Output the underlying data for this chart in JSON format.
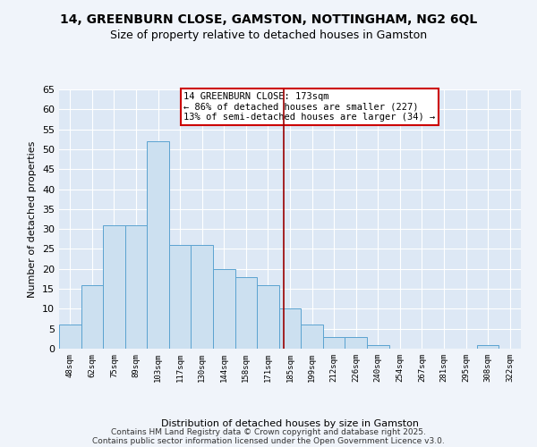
{
  "title": "14, GREENBURN CLOSE, GAMSTON, NOTTINGHAM, NG2 6QL",
  "subtitle": "Size of property relative to detached houses in Gamston",
  "xlabel": "Distribution of detached houses by size in Gamston",
  "ylabel": "Number of detached properties",
  "categories": [
    "48sqm",
    "62sqm",
    "75sqm",
    "89sqm",
    "103sqm",
    "117sqm",
    "130sqm",
    "144sqm",
    "158sqm",
    "171sqm",
    "185sqm",
    "199sqm",
    "212sqm",
    "226sqm",
    "240sqm",
    "254sqm",
    "267sqm",
    "281sqm",
    "295sqm",
    "308sqm",
    "322sqm"
  ],
  "values": [
    6,
    16,
    31,
    31,
    52,
    26,
    26,
    20,
    18,
    16,
    10,
    6,
    3,
    3,
    1,
    0,
    0,
    0,
    0,
    1,
    0
  ],
  "bar_color": "#cce0f0",
  "bar_edge_color": "#5ba3d0",
  "vline_value": 9.7,
  "vline_color": "#990000",
  "annotation_text": "14 GREENBURN CLOSE: 173sqm\n← 86% of detached houses are smaller (227)\n13% of semi-detached houses are larger (34) →",
  "annotation_box_color": "#ffffff",
  "annotation_box_edge_color": "#cc0000",
  "ylim": [
    0,
    65
  ],
  "yticks": [
    0,
    5,
    10,
    15,
    20,
    25,
    30,
    35,
    40,
    45,
    50,
    55,
    60,
    65
  ],
  "background_color": "#dde8f5",
  "grid_color": "#ffffff",
  "title_fontsize": 10,
  "subtitle_fontsize": 9,
  "ax_background": "#dce8f5",
  "footer_line1": "Contains HM Land Registry data © Crown copyright and database right 2025.",
  "footer_line2": "Contains public sector information licensed under the Open Government Licence v3.0."
}
